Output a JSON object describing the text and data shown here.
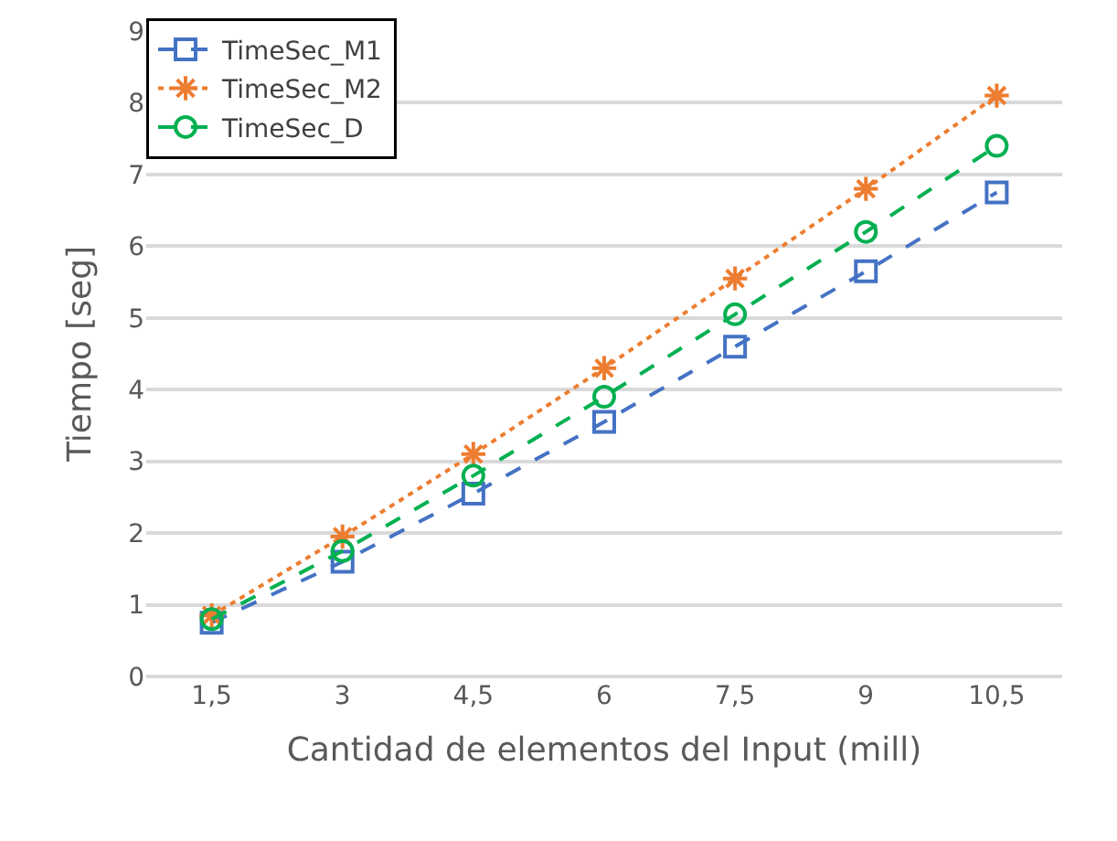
{
  "chart_data": {
    "type": "line",
    "xlabel": "Cantidad de elementos del Input (mill)",
    "ylabel": "Tiempo [seg]",
    "categories": [
      "1,5",
      "3",
      "4,5",
      "6",
      "7,5",
      "9",
      "10,5"
    ],
    "ylim": [
      0,
      9
    ],
    "yticks": [
      0,
      1,
      2,
      3,
      4,
      5,
      6,
      7,
      8,
      9
    ],
    "grid": "y",
    "legend": "top left",
    "series": [
      {
        "name": "TimeSec_M1",
        "color": "#4472c4",
        "marker": "square",
        "line_style": "dashed",
        "values": [
          0.75,
          1.6,
          2.55,
          3.55,
          4.6,
          5.65,
          6.75
        ]
      },
      {
        "name": "TimeSec_M2",
        "color": "#ed7d31",
        "marker": "cross",
        "line_style": "dotted",
        "values": [
          0.85,
          1.95,
          3.1,
          4.3,
          5.55,
          6.8,
          8.1
        ]
      },
      {
        "name": "TimeSec_D",
        "color": "#00b050",
        "marker": "circle",
        "line_style": "dashed",
        "values": [
          0.8,
          1.75,
          2.8,
          3.9,
          5.05,
          6.2,
          7.4
        ]
      }
    ]
  }
}
